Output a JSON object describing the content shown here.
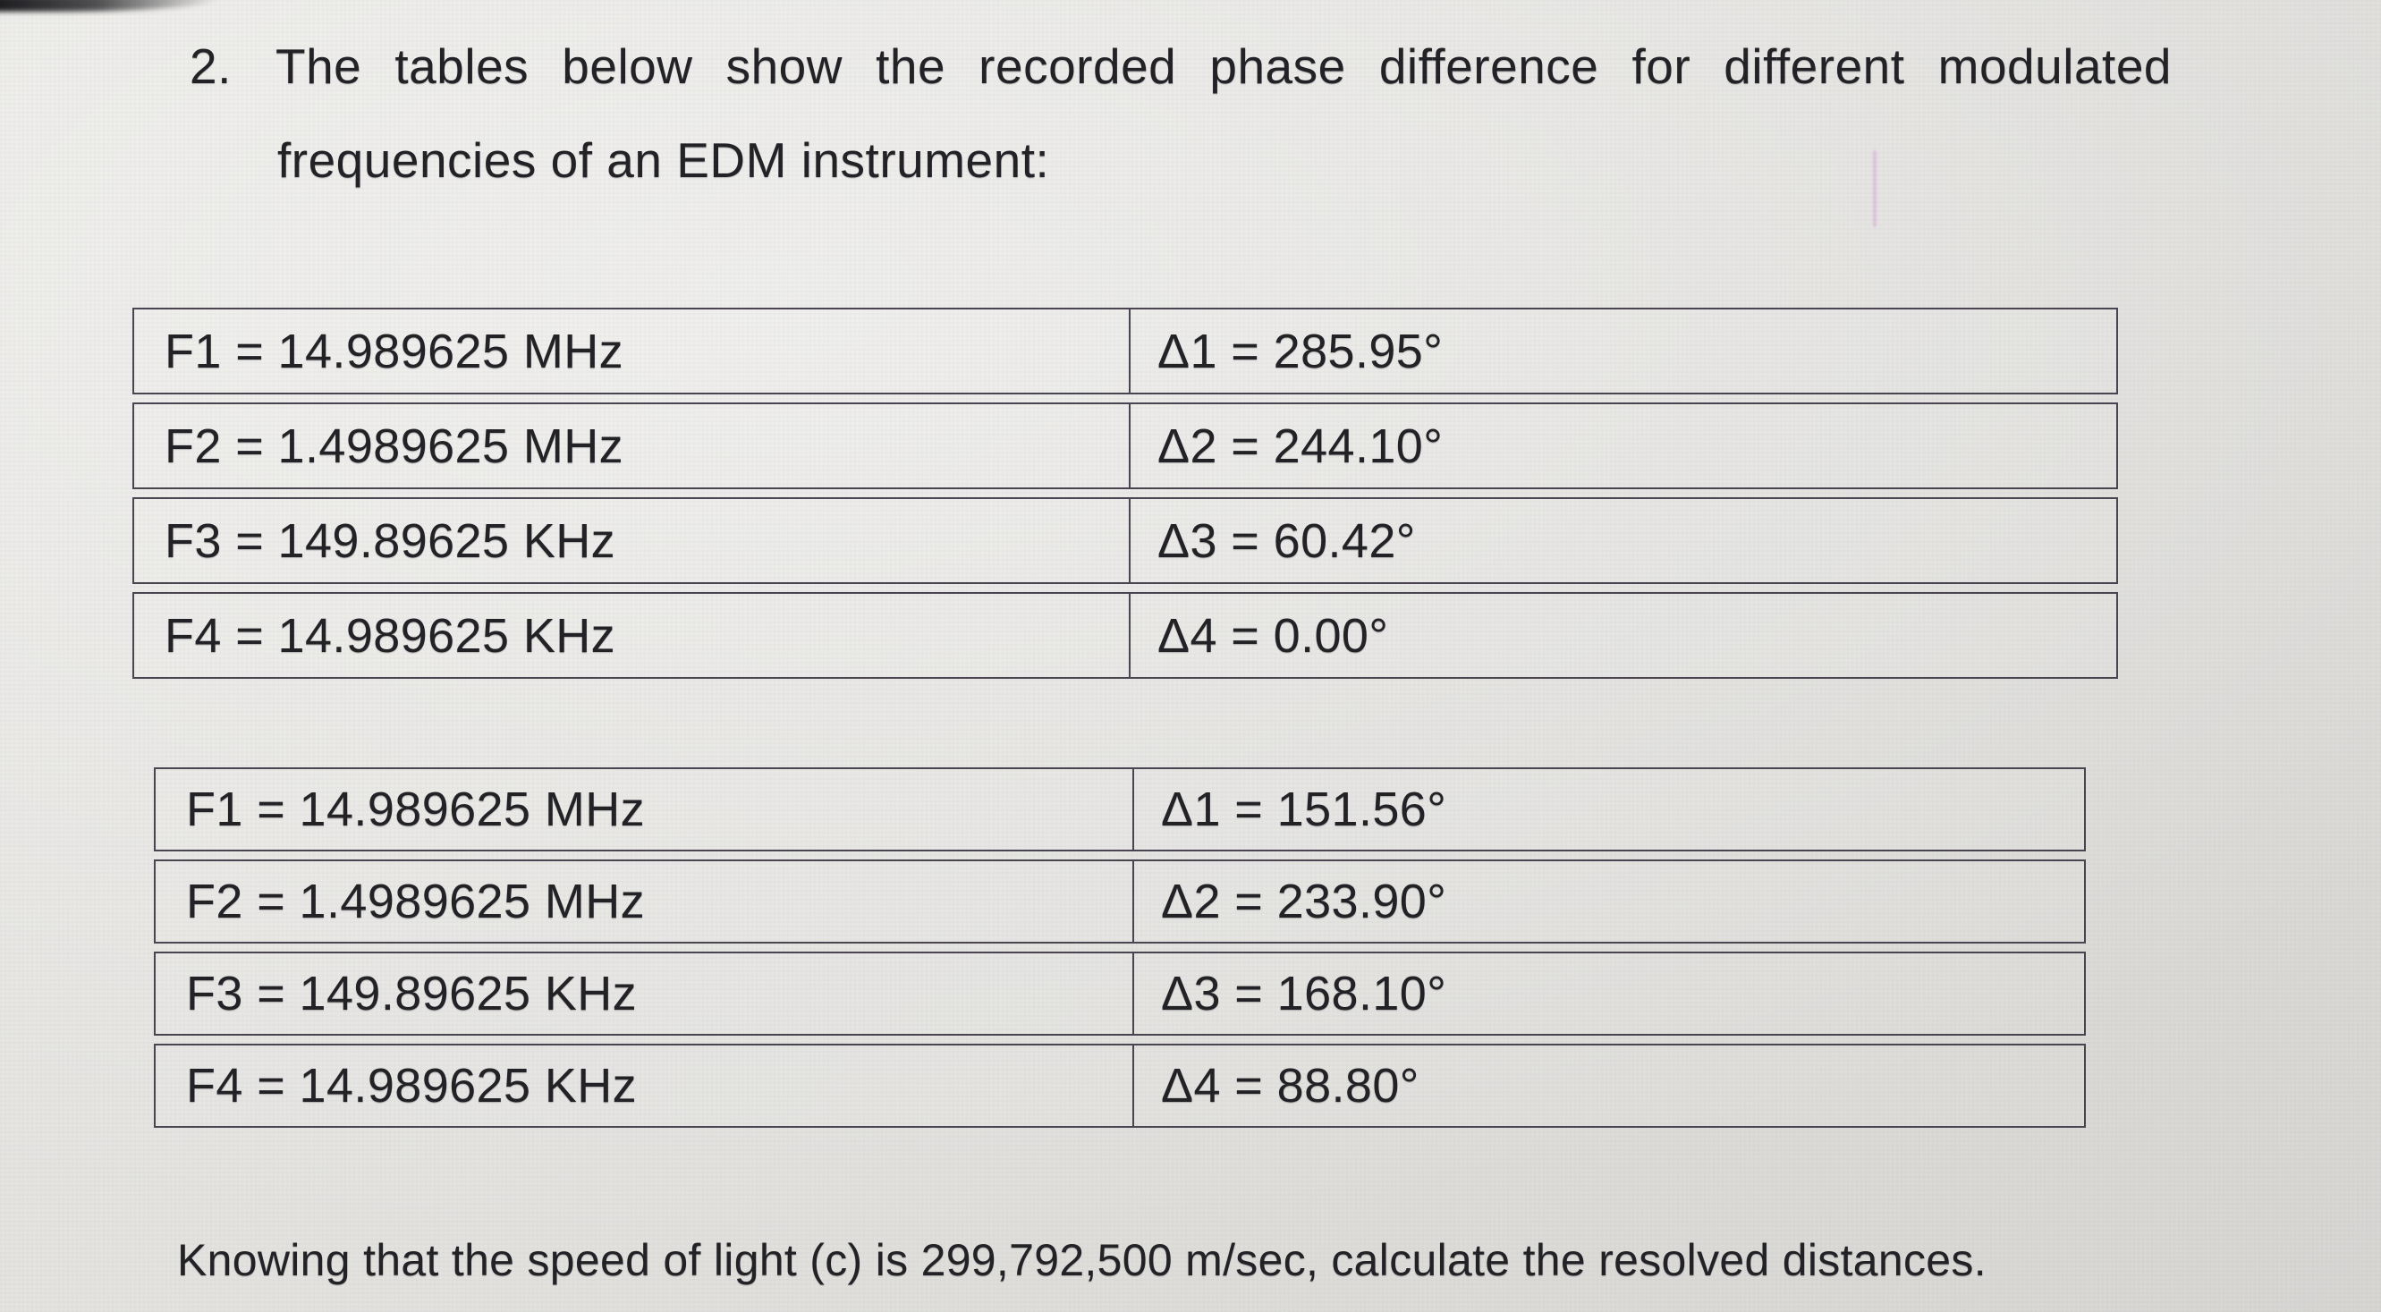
{
  "question": {
    "number": "2.",
    "line1": "The tables below show the recorded phase difference for different modulated",
    "line2": "frequencies of an EDM instrument:"
  },
  "tables": [
    {
      "rows": [
        {
          "freq": "F1 = 14.989625 MHz",
          "phase": "Δ1 = 285.95°"
        },
        {
          "freq": "F2 = 1.4989625 MHz",
          "phase": "Δ2 = 244.10°"
        },
        {
          "freq": "F3 = 149.89625 KHz",
          "phase": "Δ3 = 60.42°"
        },
        {
          "freq": "F4 = 14.989625 KHz",
          "phase": "Δ4 = 0.00°"
        }
      ]
    },
    {
      "rows": [
        {
          "freq": "F1 = 14.989625 MHz",
          "phase": "Δ1 = 151.56°"
        },
        {
          "freq": "F2 = 1.4989625 MHz",
          "phase": "Δ2 = 233.90°"
        },
        {
          "freq": "F3 = 149.89625 KHz",
          "phase": "Δ3 = 168.10°"
        },
        {
          "freq": "F4 = 14.989625 KHz",
          "phase": "Δ4 = 88.80°"
        }
      ]
    }
  ],
  "footer": "Knowing that the speed of light (c) is 299,792,500 m/sec, calculate the resolved distances.",
  "colors": {
    "background": "#e3e2df",
    "text": "#232327",
    "table_border": "#4a4550"
  }
}
